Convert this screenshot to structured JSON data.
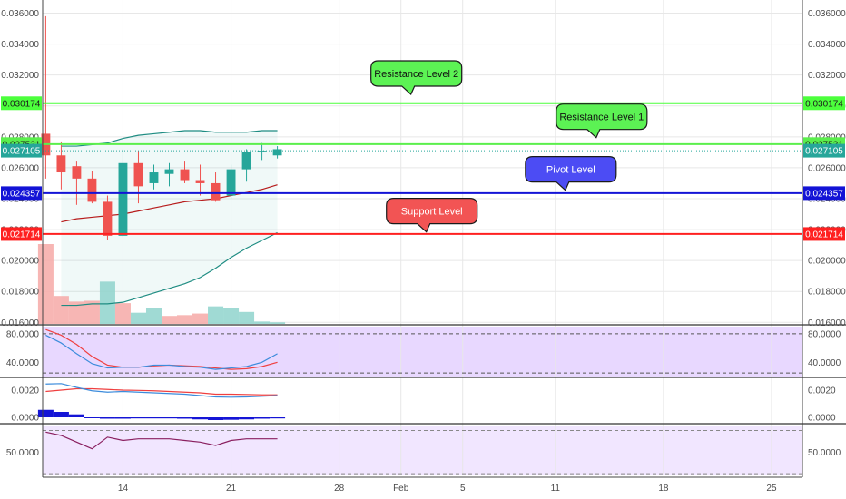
{
  "chart_data": {
    "type": "candlestick",
    "x_axis": {
      "tick_labels": [
        "14",
        "21",
        "28",
        "Feb",
        "5",
        "11",
        "18",
        "25"
      ],
      "tick_days": [
        14,
        21,
        28,
        32,
        36,
        42,
        49,
        56
      ],
      "domain_days": [
        8.8,
        58
      ]
    },
    "price_axis": {
      "ylim": [
        0.0159,
        0.0365
      ],
      "ticks": [
        "0.036000",
        "0.034000",
        "0.032000",
        "0.030000",
        "0.028000",
        "0.026000",
        "0.024000",
        "0.022000",
        "0.020000",
        "0.018000",
        "0.016000"
      ]
    },
    "candles": [
      {
        "day": 9,
        "open": 0.0282,
        "high": 0.0358,
        "low": 0.0253,
        "close": 0.0268
      },
      {
        "day": 10,
        "open": 0.0268,
        "high": 0.0277,
        "low": 0.0246,
        "close": 0.0257
      },
      {
        "day": 11,
        "open": 0.0261,
        "high": 0.0264,
        "low": 0.0236,
        "close": 0.0253
      },
      {
        "day": 12,
        "open": 0.0253,
        "high": 0.0258,
        "low": 0.0237,
        "close": 0.0238
      },
      {
        "day": 13,
        "open": 0.0238,
        "high": 0.0242,
        "low": 0.0213,
        "close": 0.0216
      },
      {
        "day": 14,
        "open": 0.0216,
        "high": 0.0272,
        "low": 0.0215,
        "close": 0.0263
      },
      {
        "day": 15,
        "open": 0.0263,
        "high": 0.0271,
        "low": 0.0237,
        "close": 0.0248
      },
      {
        "day": 16,
        "open": 0.025,
        "high": 0.0262,
        "low": 0.0246,
        "close": 0.0257
      },
      {
        "day": 17,
        "open": 0.0256,
        "high": 0.0263,
        "low": 0.0248,
        "close": 0.0259
      },
      {
        "day": 18,
        "open": 0.0259,
        "high": 0.0264,
        "low": 0.025,
        "close": 0.0252
      },
      {
        "day": 19,
        "open": 0.0252,
        "high": 0.0262,
        "low": 0.0242,
        "close": 0.025
      },
      {
        "day": 20,
        "open": 0.025,
        "high": 0.0257,
        "low": 0.0238,
        "close": 0.0239
      },
      {
        "day": 21,
        "open": 0.0242,
        "high": 0.0262,
        "low": 0.024,
        "close": 0.0259
      },
      {
        "day": 22,
        "open": 0.0259,
        "high": 0.0272,
        "low": 0.0251,
        "close": 0.027
      },
      {
        "day": 23,
        "open": 0.027,
        "high": 0.0276,
        "low": 0.0265,
        "close": 0.0271
      },
      {
        "day": 24,
        "open": 0.0268,
        "high": 0.0274,
        "low": 0.0266,
        "close": 0.0272
      }
    ],
    "bollinger": {
      "days": [
        10,
        11,
        12,
        13,
        14,
        15,
        16,
        17,
        18,
        19,
        20,
        21,
        22,
        23,
        24
      ],
      "upper": [
        0.0274,
        0.0274,
        0.0275,
        0.0276,
        0.0279,
        0.0281,
        0.0282,
        0.0283,
        0.0284,
        0.0284,
        0.0283,
        0.0283,
        0.0283,
        0.0284,
        0.0284
      ],
      "middle": [
        0.0225,
        0.0227,
        0.0228,
        0.0229,
        0.023,
        0.0232,
        0.0234,
        0.0236,
        0.0238,
        0.0239,
        0.024,
        0.0242,
        0.0244,
        0.0246,
        0.0249
      ],
      "lower": [
        0.0171,
        0.0171,
        0.0172,
        0.0172,
        0.0173,
        0.0176,
        0.0179,
        0.0182,
        0.0185,
        0.0189,
        0.0195,
        0.0202,
        0.0208,
        0.0213,
        0.0218
      ]
    },
    "volume": {
      "max": 100,
      "values": [
        100,
        35,
        28,
        29,
        53,
        26,
        14,
        20,
        10,
        11,
        13,
        22,
        20,
        15,
        3,
        2
      ],
      "up": [
        false,
        false,
        false,
        false,
        true,
        false,
        true,
        true,
        false,
        false,
        false,
        true,
        true,
        true,
        true,
        true
      ]
    },
    "levels": [
      {
        "name": "Resistance Level 2",
        "price": 0.030174,
        "label": "0.030174",
        "color": "#4cff3c",
        "callout_day": 33,
        "callout_price": 0.0321,
        "callout_color": "#5cf254"
      },
      {
        "name": "Resistance Level 1",
        "price": 0.027531,
        "label": "0.027531",
        "color": "#5bef4c",
        "callout_day": 45,
        "callout_price": 0.0293,
        "callout_color": "#5cf254"
      },
      {
        "name": "Pivot Level",
        "price": 0.024357,
        "label": "0.024357",
        "color": "#1313d6",
        "callout_day": 43,
        "callout_price": 0.0259,
        "callout_color": "#4c4cf4"
      },
      {
        "name": "Support Level",
        "price": 0.021714,
        "label": "0.021714",
        "color": "#ff2020",
        "callout_day": 34,
        "callout_price": 0.0232,
        "callout_color": "#f25454"
      }
    ],
    "last_price": {
      "price": 0.027105,
      "label": "0.027105",
      "color": "#26a69a"
    },
    "rsi": {
      "ylim": [
        20,
        90
      ],
      "ticks": [
        "80.0000",
        "40.0000"
      ],
      "bands": [
        80,
        25
      ],
      "k_days": [
        9,
        10,
        11,
        12,
        13,
        14,
        15,
        16,
        17,
        18,
        19,
        20,
        21,
        22,
        23,
        24
      ],
      "k": [
        78,
        67,
        52,
        38,
        32,
        33,
        33,
        36,
        36,
        34,
        33,
        30,
        32,
        34,
        40,
        52
      ],
      "d": [
        86,
        78,
        65,
        48,
        36,
        33,
        33,
        35,
        36,
        35,
        34,
        32,
        30,
        31,
        34,
        40
      ]
    },
    "macd": {
      "ylim": [
        -0.0004,
        0.0028
      ],
      "ticks": [
        "0.0020",
        "0.0000"
      ],
      "days": [
        9,
        10,
        11,
        12,
        13,
        14,
        15,
        16,
        17,
        18,
        19,
        20,
        21,
        22,
        23,
        24
      ],
      "macd": [
        0.00245,
        0.00248,
        0.0022,
        0.00195,
        0.00185,
        0.0019,
        0.00185,
        0.0018,
        0.00175,
        0.0017,
        0.0016,
        0.0015,
        0.00148,
        0.0015,
        0.00155,
        0.0016
      ],
      "signal": [
        0.0019,
        0.002,
        0.0021,
        0.0021,
        0.00205,
        0.002,
        0.00198,
        0.00195,
        0.0019,
        0.00185,
        0.0018,
        0.0017,
        0.0017,
        0.00168,
        0.00165,
        0.00165
      ],
      "hist": [
        0.00055,
        0.0004,
        0.00022,
        0.0,
        -0.0001,
        -0.0001,
        -8e-05,
        -8e-05,
        -8e-05,
        -0.0001,
        -0.00015,
        -0.0002,
        -0.00018,
        -0.00015,
        -0.0001,
        -8e-05
      ]
    },
    "osc": {
      "ylim": [
        36,
        66
      ],
      "ticks": [
        "50.0000"
      ],
      "bands": [
        63,
        37
      ],
      "days": [
        9,
        10,
        11,
        12,
        13,
        14,
        15,
        16,
        17,
        18,
        19,
        20,
        21,
        22,
        23,
        24
      ],
      "values": [
        62,
        60,
        56,
        52,
        59,
        57,
        58,
        58,
        58,
        57,
        56,
        54,
        57,
        58,
        58,
        58
      ]
    }
  },
  "colors": {
    "bull": "#26a69a",
    "bear": "#ef5350",
    "bb_upper": "#1e8c82",
    "bb_lower": "#1e8c82",
    "bb_middle": "#b71c1c",
    "rsi_k": "#3c8cdc",
    "rsi_d": "#ef4040",
    "macd": "#3c8cdc",
    "signal": "#ef4040",
    "hist": "#1515d6",
    "osc": "#8a2060"
  }
}
